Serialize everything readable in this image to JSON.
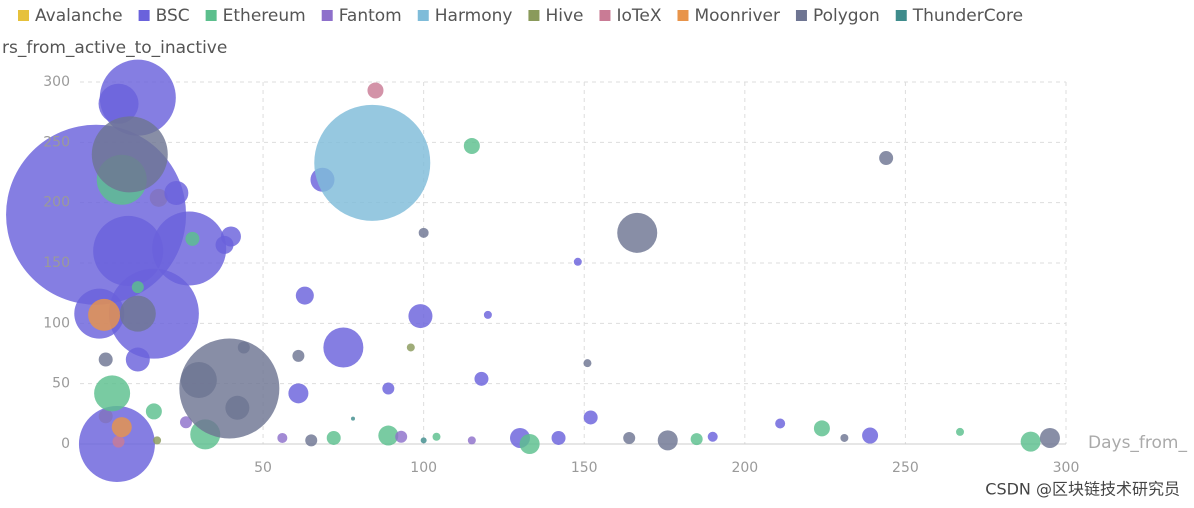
{
  "chart_data": {
    "type": "bubble",
    "y_label": "rs_from_active_to_inactive",
    "x_label": "Days_from_",
    "watermark": "CSDN @区块链技术研究员",
    "xlim": [
      -7,
      300
    ],
    "ylim": [
      0,
      300
    ],
    "xticks": [
      50,
      100,
      150,
      200,
      250,
      300
    ],
    "yticks": [
      0,
      50,
      100,
      150,
      200,
      250,
      300
    ],
    "grid": true,
    "series": [
      {
        "name": "Avalanche",
        "color": "#e6c13b",
        "x": [
          17.5,
          1
        ],
        "values": [
          204,
          23
        ],
        "sizes": [
          9,
          7
        ]
      },
      {
        "name": "BSC",
        "color": "#6a62dc",
        "x": [
          -2,
          11,
          16,
          4.5,
          8,
          27,
          5,
          -1,
          75,
          23,
          68.5,
          99,
          11,
          40,
          38,
          63,
          61,
          118,
          89,
          152,
          130,
          142,
          211,
          239,
          148,
          120,
          190
        ],
        "values": [
          190,
          287,
          108,
          0,
          160,
          162,
          282,
          108,
          80,
          208,
          219,
          106,
          70,
          172,
          165,
          123,
          42,
          54,
          46,
          22,
          5,
          5,
          17,
          7,
          151,
          107,
          6
        ],
        "sizes": [
          90,
          38,
          45,
          38,
          35,
          37,
          20,
          25,
          20,
          12,
          12,
          12,
          12,
          10,
          9,
          9,
          10,
          7,
          6,
          7,
          10,
          7,
          5,
          8,
          4,
          4,
          5
        ]
      },
      {
        "name": "Ethereum",
        "color": "#5cbf8d",
        "x": [
          6,
          3,
          115,
          28,
          224,
          289,
          133,
          89,
          267,
          185,
          16,
          32,
          72,
          11,
          104
        ],
        "values": [
          219,
          42,
          247,
          170,
          13,
          2,
          0,
          7,
          10,
          4,
          27,
          8,
          5,
          130,
          6
        ],
        "sizes": [
          25,
          18,
          8,
          7,
          8,
          10,
          10,
          10,
          4,
          6,
          8,
          15,
          7,
          6,
          4
        ]
      },
      {
        "name": "Fantom",
        "color": "#8e70cb",
        "x": [
          26,
          56,
          93,
          115
        ],
        "values": [
          18,
          5,
          6,
          3
        ],
        "sizes": [
          6,
          5,
          6,
          4
        ]
      },
      {
        "name": "Harmony",
        "color": "#7fbcd9",
        "x": [
          84
        ],
        "values": [
          233
        ],
        "sizes": [
          58
        ]
      },
      {
        "name": "Hive",
        "color": "#8a9a5b",
        "x": [
          96,
          17
        ],
        "values": [
          80,
          3
        ],
        "sizes": [
          4,
          4
        ]
      },
      {
        "name": "IoTeX",
        "color": "#c97b95",
        "x": [
          85,
          5
        ],
        "values": [
          293,
          2
        ],
        "sizes": [
          8,
          6
        ]
      },
      {
        "name": "Moonriver",
        "color": "#e8944a",
        "x": [
          0.5,
          6
        ],
        "values": [
          107,
          14
        ],
        "sizes": [
          16,
          10
        ]
      },
      {
        "name": "Polygon",
        "color": "#6e7592",
        "x": [
          39.5,
          8.5,
          166.5,
          11,
          30,
          42,
          244,
          100,
          1,
          61,
          44,
          151,
          176,
          295,
          164,
          231,
          65
        ],
        "values": [
          46,
          240,
          175,
          108,
          53,
          30,
          237,
          175,
          70,
          73,
          80,
          67,
          3,
          5,
          5,
          5,
          3
        ],
        "sizes": [
          50,
          38,
          20,
          18,
          18,
          12,
          7,
          5,
          7,
          6,
          6,
          4,
          10,
          10,
          6,
          4,
          6
        ]
      },
      {
        "name": "ThunderCore",
        "color": "#3f8c8c",
        "x": [
          78,
          100
        ],
        "values": [
          21,
          3
        ],
        "sizes": [
          2,
          3
        ]
      }
    ]
  }
}
